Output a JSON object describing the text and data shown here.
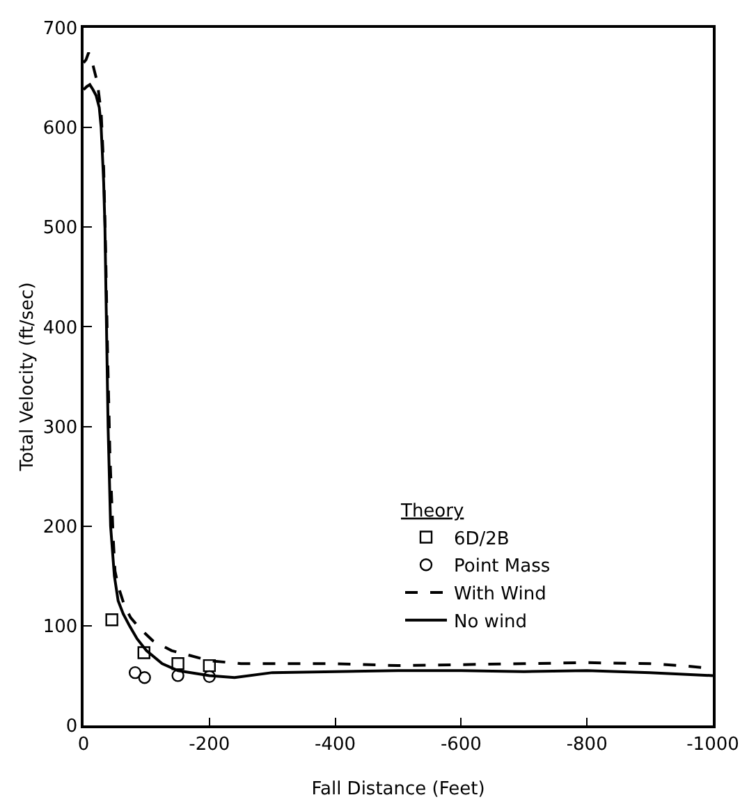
{
  "chart_data": {
    "type": "line",
    "xlabel": "Fall Distance (Feet)",
    "ylabel": "Total Velocity (ft/sec)",
    "legend_title": "Theory",
    "xlim": [
      0,
      -1000
    ],
    "xticks": [
      0,
      -200,
      -400,
      -600,
      -800,
      -1000
    ],
    "ylim": [
      0,
      700
    ],
    "yticks": [
      0,
      100,
      200,
      300,
      400,
      500,
      600,
      700
    ],
    "grid": false,
    "legend": "bottom",
    "series": [
      {
        "name": "6D/2B",
        "type": "scatter",
        "marker": "square",
        "color": "#000000",
        "x": [
          -45,
          -96,
          -150,
          -200
        ],
        "values": [
          106,
          73,
          62,
          60
        ]
      },
      {
        "name": "Point Mass",
        "type": "scatter",
        "marker": "circle",
        "color": "#000000",
        "x": [
          -82,
          -97,
          -150,
          -200
        ],
        "values": [
          53,
          48,
          50,
          49
        ]
      },
      {
        "name": "With Wind",
        "line_style": "dashed",
        "color": "#000000",
        "x": [
          0,
          -4,
          -8,
          -12,
          -16,
          -22,
          -28,
          -32,
          -35,
          -38,
          -42,
          -47,
          -50,
          -55,
          -65,
          -75,
          -90,
          -110,
          -140,
          -170,
          -200,
          -250,
          -300,
          -400,
          -500,
          -600,
          -700,
          -800,
          -900,
          -950,
          -1000
        ],
        "values": [
          665,
          668,
          675,
          670,
          660,
          645,
          615,
          560,
          480,
          380,
          270,
          190,
          155,
          140,
          120,
          108,
          97,
          85,
          75,
          70,
          65,
          62,
          62,
          62,
          60,
          61,
          62,
          63,
          62,
          60,
          57
        ]
      },
      {
        "name": "No wind",
        "line_style": "solid",
        "color": "#000000",
        "x": [
          0,
          -5,
          -10,
          -15,
          -20,
          -25,
          -28,
          -32,
          -34,
          -36,
          -39,
          -43,
          -49,
          -55,
          -63,
          -73,
          -85,
          -100,
          -125,
          -150,
          -200,
          -240,
          -300,
          -400,
          -500,
          -600,
          -700,
          -800,
          -900,
          -1000
        ],
        "values": [
          638,
          641,
          643,
          638,
          632,
          620,
          600,
          545,
          500,
          420,
          300,
          200,
          150,
          125,
          112,
          100,
          87,
          75,
          62,
          55,
          50,
          48,
          53,
          54,
          55,
          55,
          54,
          55,
          53,
          50
        ]
      }
    ]
  }
}
